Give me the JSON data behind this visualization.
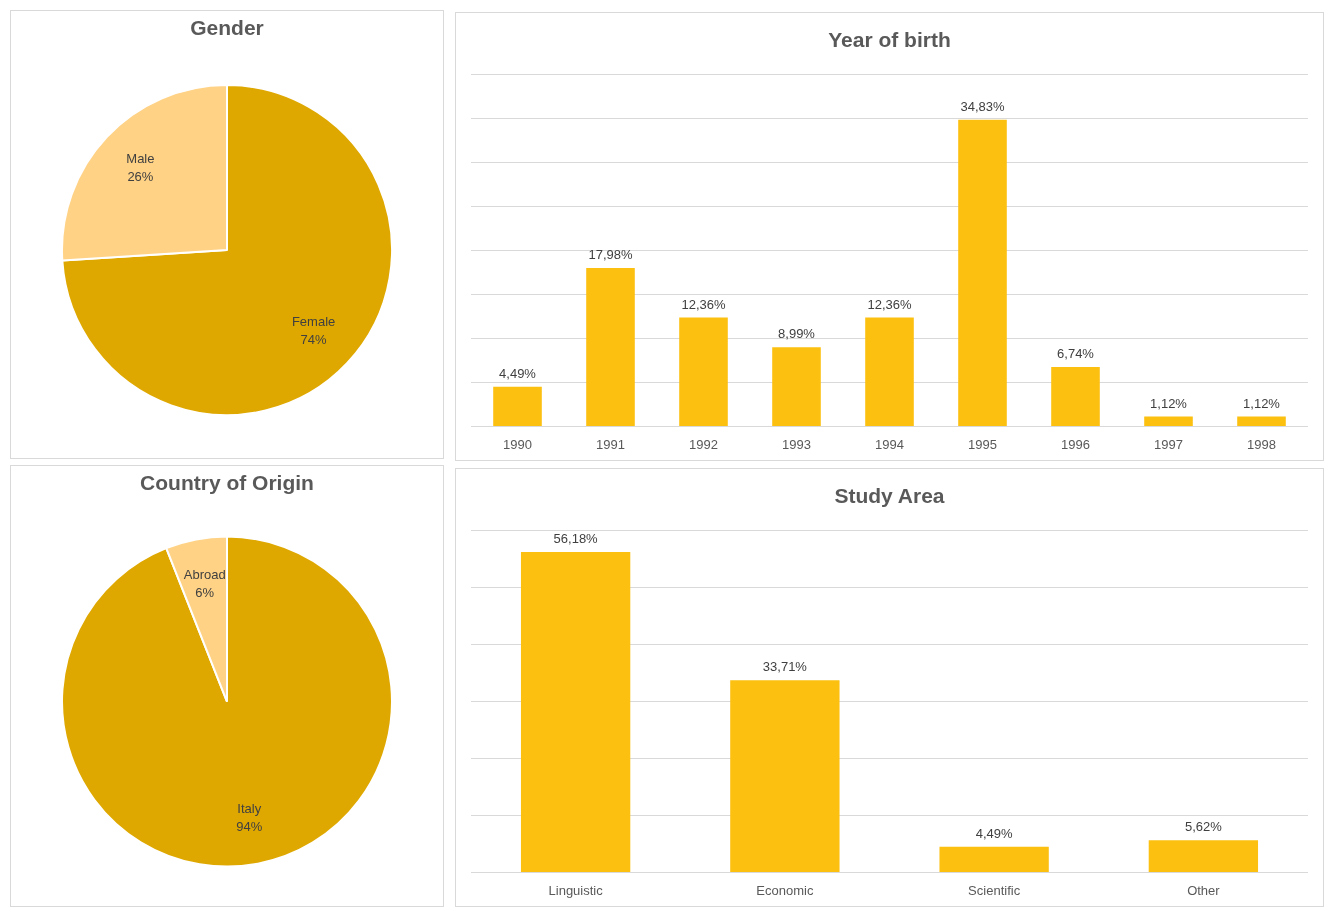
{
  "chart_data": [
    {
      "type": "pie",
      "title": "Gender",
      "categories": [
        "Female",
        "Male"
      ],
      "values": [
        74,
        26
      ],
      "colors": [
        "#dfa800",
        "#ffd285"
      ],
      "value_labels": [
        "74%",
        "26%"
      ],
      "legend": false
    },
    {
      "type": "bar",
      "title": "Year of birth",
      "categories": [
        "1990",
        "1991",
        "1992",
        "1993",
        "1994",
        "1995",
        "1996",
        "1997",
        "1998"
      ],
      "values": [
        4.49,
        17.98,
        12.36,
        8.99,
        12.36,
        34.83,
        6.74,
        1.12,
        1.12
      ],
      "color": "#fcc010",
      "value_labels": [
        "4,49%",
        "17,98%",
        "12,36%",
        "8,99%",
        "12,36%",
        "34,83%",
        "6,74%",
        "1,12%",
        "1,12%"
      ],
      "ylim": [
        0,
        40
      ],
      "yticks": [
        {
          "value": 0,
          "label": null
        },
        {
          "value": 5,
          "label": null
        },
        {
          "value": 10,
          "label": null
        },
        {
          "value": 15,
          "label": null
        },
        {
          "value": 20,
          "label": null
        },
        {
          "value": 25,
          "label": null
        },
        {
          "value": 30,
          "label": null
        },
        {
          "value": 35,
          "label": null
        },
        {
          "value": 40,
          "label": null
        }
      ],
      "grid": "y",
      "tick_labels": "x",
      "legend": false
    },
    {
      "type": "pie",
      "title": "Country of Origin",
      "categories": [
        "Italy",
        "Abroad"
      ],
      "values": [
        94,
        6
      ],
      "colors": [
        "#dfa800",
        "#ffd285"
      ],
      "value_labels": [
        "94%",
        "6%"
      ],
      "legend": false
    },
    {
      "type": "bar",
      "title": "Study Area",
      "categories": [
        "Linguistic",
        "Economic",
        "Scientific",
        "Other"
      ],
      "values": [
        56.18,
        33.71,
        4.49,
        5.62
      ],
      "color": "#fcc010",
      "value_labels": [
        "56,18%",
        "33,71%",
        "4,49%",
        "5,62%"
      ],
      "ylim": [
        0,
        60
      ],
      "yticks": [
        {
          "value": 0,
          "label": null
        },
        {
          "value": 10,
          "label": null
        },
        {
          "value": 20,
          "label": null
        },
        {
          "value": 30,
          "label": null
        },
        {
          "value": 40,
          "label": null
        },
        {
          "value": 50,
          "label": null
        },
        {
          "value": 60,
          "label": null
        }
      ],
      "grid": "y",
      "tick_labels": "x",
      "legend": false
    }
  ]
}
